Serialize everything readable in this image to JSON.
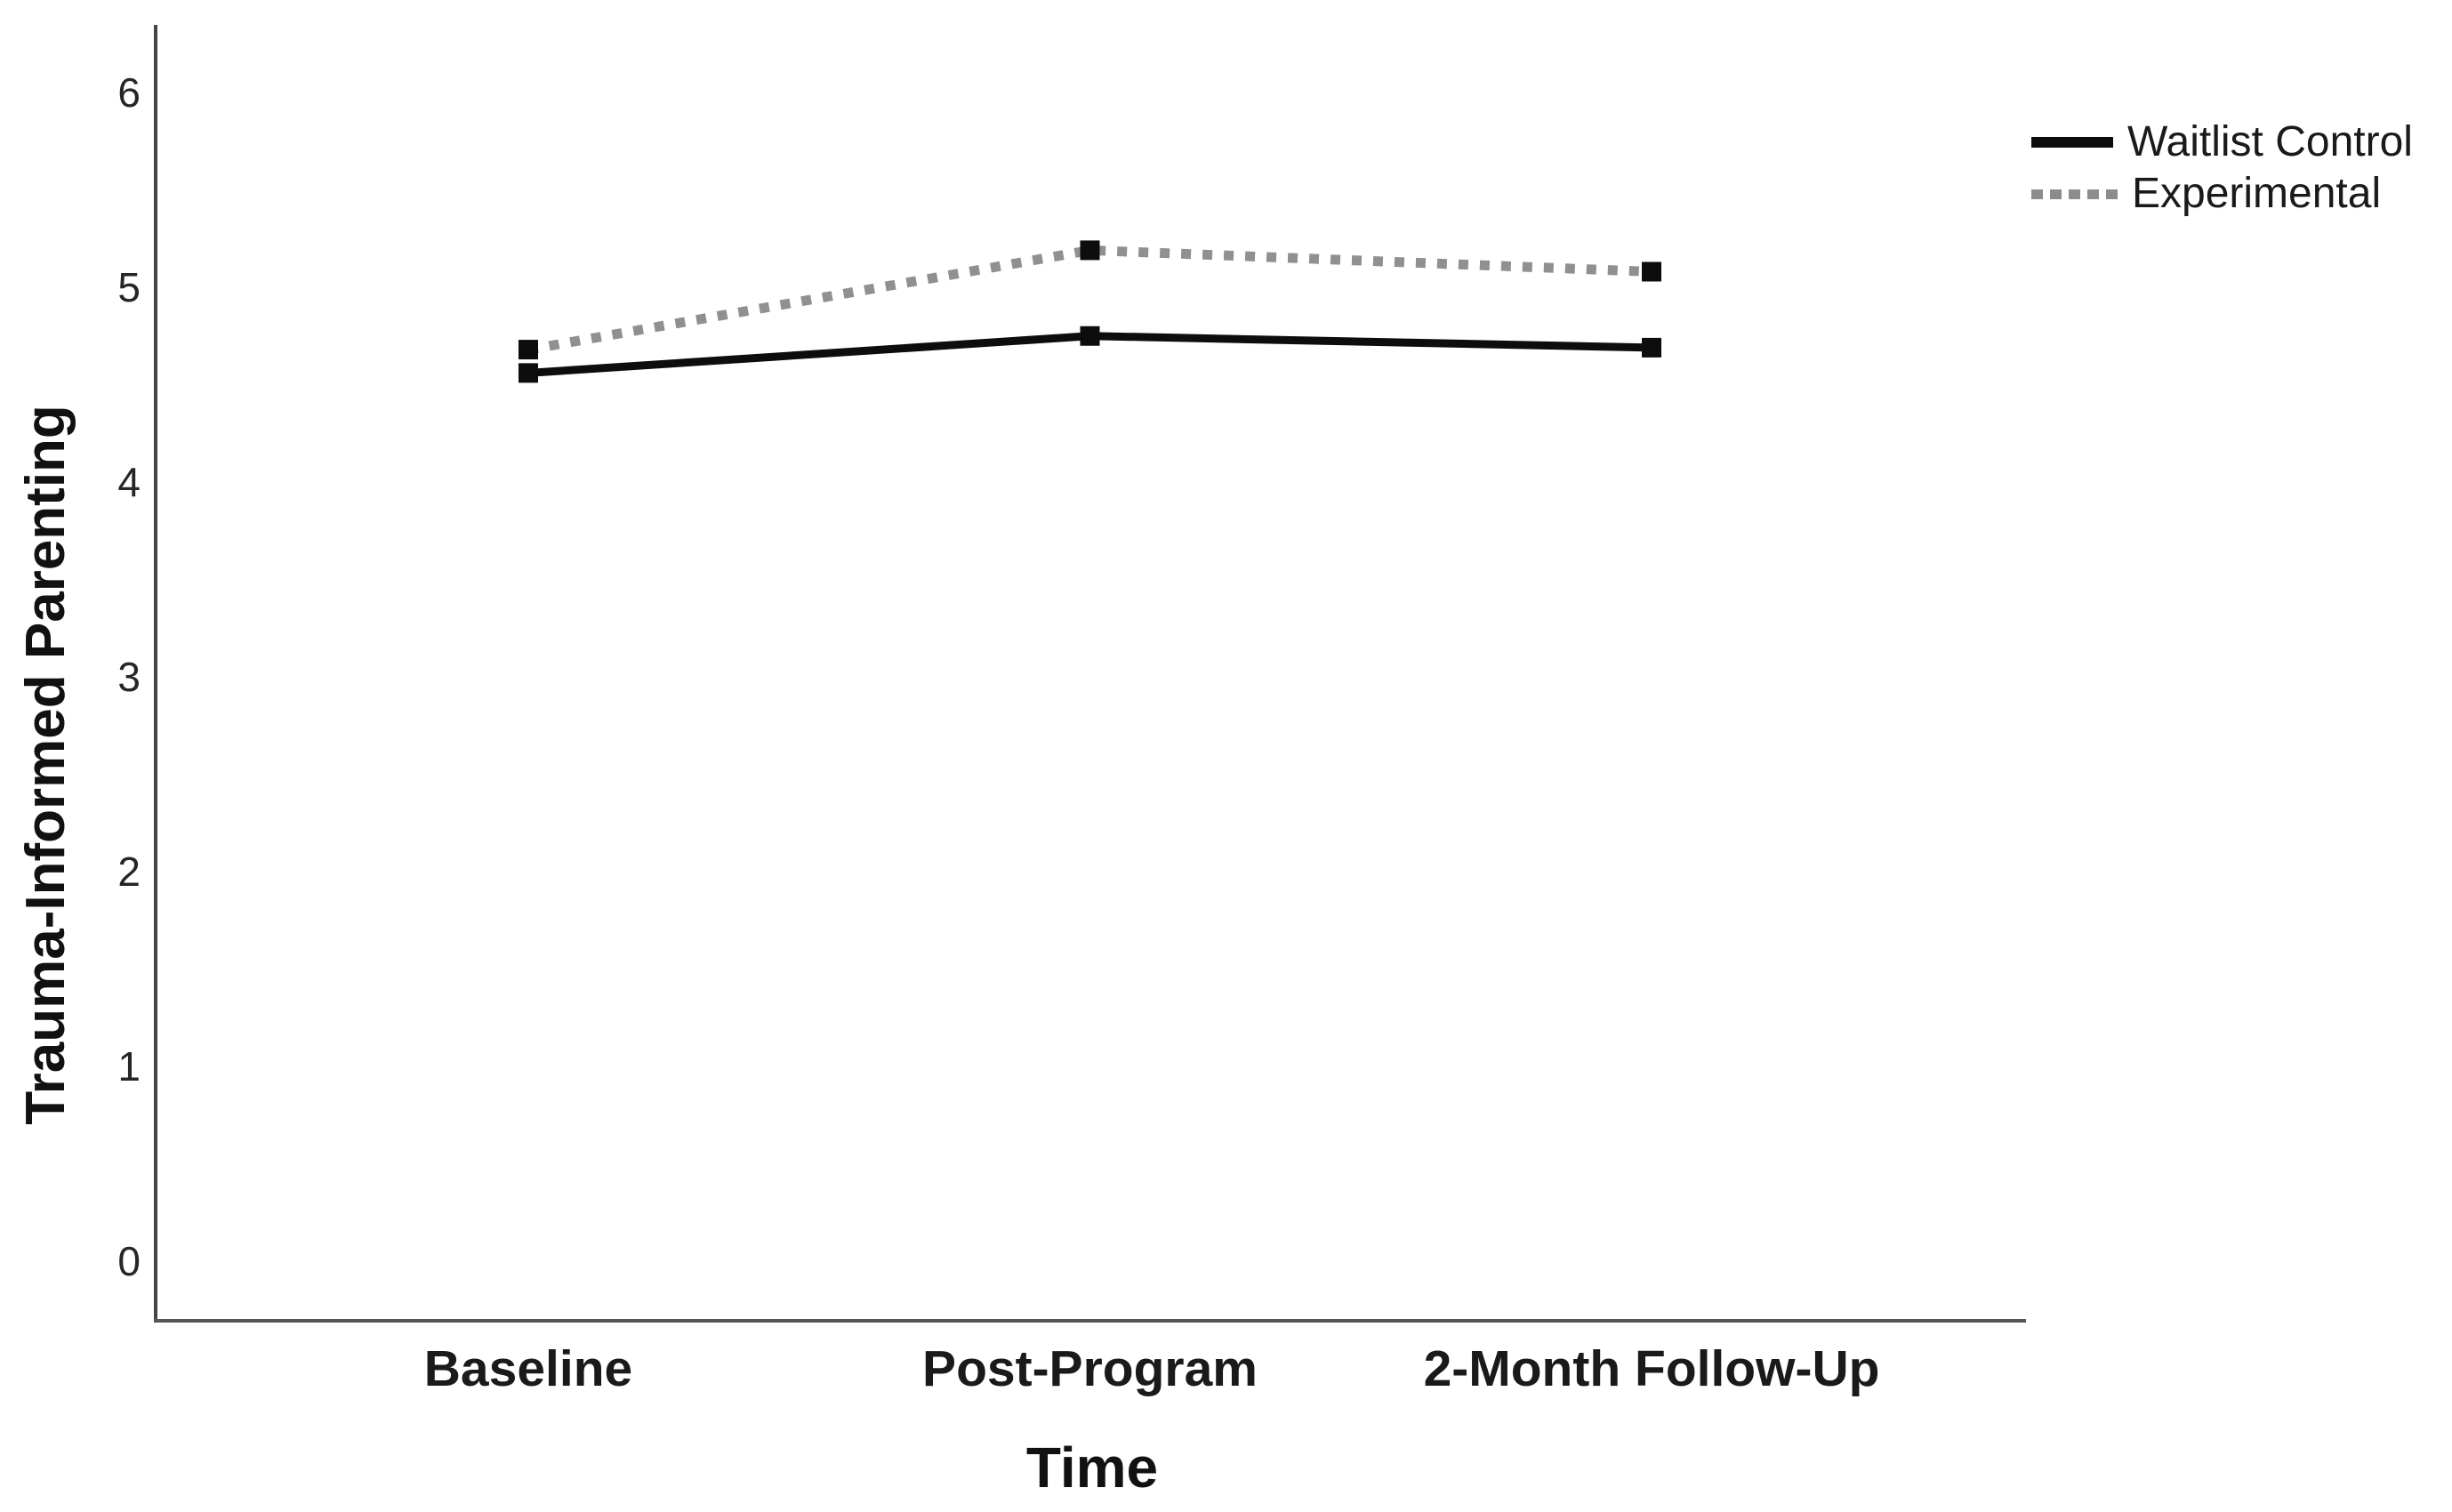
{
  "chart_data": {
    "type": "line",
    "title": "",
    "xlabel": "Time",
    "ylabel": "Trauma-Informed Parenting",
    "categories": [
      "Baseline",
      "Post-Program",
      "2-Month Follow-Up"
    ],
    "yticks": [
      0,
      1,
      2,
      3,
      4,
      5,
      6
    ],
    "ylim": [
      0,
      6.4
    ],
    "grid": false,
    "legend_position": "top-right",
    "series": [
      {
        "name": "Waitlist Control",
        "style": "solid",
        "line_color": "#0d0d0d",
        "marker": "square",
        "marker_color": "#0d0d0d",
        "values": [
          4.56,
          4.75,
          4.69
        ]
      },
      {
        "name": "Experimental",
        "style": "dotted",
        "line_color": "#909090",
        "marker": "square",
        "marker_color": "#0d0d0d",
        "values": [
          4.68,
          5.19,
          5.08
        ]
      }
    ]
  }
}
